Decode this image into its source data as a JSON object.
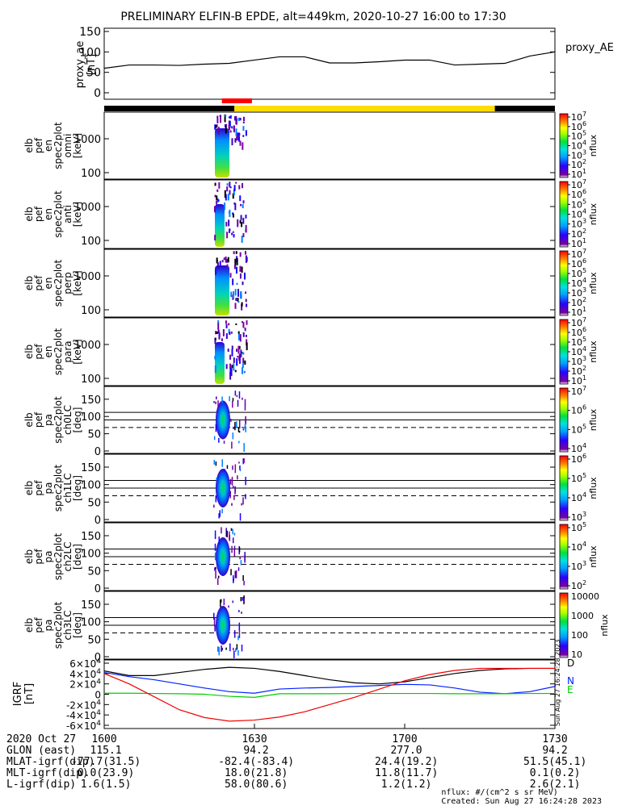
{
  "title": "PRELIMINARY ELFIN-B EPDE, alt=449km, 2020-10-27 16:00 to 17:30",
  "x_ticks": [
    "1600",
    "1630",
    "1700",
    "1730"
  ],
  "chart_data": [
    {
      "type": "line",
      "name": "proxy_ae",
      "ylabel": [
        "proxy_ae",
        "[nT]"
      ],
      "yticks": [
        "150",
        "100",
        "50",
        "0"
      ],
      "ylim": [
        0,
        150
      ],
      "x_minutes": [
        0,
        5,
        10,
        15,
        20,
        25,
        30,
        35,
        40,
        45,
        50,
        55,
        60,
        65,
        70,
        75,
        80,
        85,
        90
      ],
      "values": [
        60,
        68,
        68,
        67,
        70,
        72,
        80,
        88,
        88,
        73,
        73,
        76,
        80,
        80,
        68,
        70,
        72,
        90,
        100
      ],
      "legend": "proxy_AE"
    },
    {
      "type": "bar",
      "name": "orbit-indicator",
      "segments": [
        {
          "start_min": 0,
          "end_min": 26,
          "color": "#000000"
        },
        {
          "start_min": 26,
          "end_min": 78,
          "color": "#ffdd00"
        },
        {
          "start_min": 78,
          "end_min": 90,
          "color": "#000000"
        }
      ],
      "science_zone": {
        "start_min": 23.5,
        "end_min": 29.5,
        "color": "#ff0000"
      }
    },
    {
      "type": "heatmap",
      "name": "spectrogram-energy-omni",
      "ylabel": [
        "elb",
        "pef",
        "en",
        "spec2plot",
        "omni",
        "[keV]"
      ],
      "yticks": [
        "1000",
        "100"
      ],
      "colorbar_ticks": [
        "10^7",
        "10^6",
        "10^5",
        "10^4",
        "10^3",
        "10^2",
        "10^1"
      ],
      "colorbar_label": "nflux"
    },
    {
      "type": "heatmap",
      "name": "spectrogram-energy-anti",
      "ylabel": [
        "elb",
        "pef",
        "en",
        "spec2plot",
        "anti",
        "[keV]"
      ],
      "yticks": [
        "1000",
        "100"
      ],
      "colorbar_ticks": [
        "10^7",
        "10^6",
        "10^5",
        "10^4",
        "10^3",
        "10^2",
        "10^1"
      ],
      "colorbar_label": "nflux"
    },
    {
      "type": "heatmap",
      "name": "spectrogram-energy-perp",
      "ylabel": [
        "elb",
        "pef",
        "en",
        "spec2plot",
        "perp",
        "[keV]"
      ],
      "yticks": [
        "1000",
        "100"
      ],
      "colorbar_ticks": [
        "10^7",
        "10^6",
        "10^5",
        "10^4",
        "10^3",
        "10^2",
        "10^1"
      ],
      "colorbar_label": "nflux"
    },
    {
      "type": "heatmap",
      "name": "spectrogram-energy-para",
      "ylabel": [
        "elb",
        "pef",
        "en",
        "spec2plot",
        "para",
        "[keV]"
      ],
      "yticks": [
        "1000",
        "100"
      ],
      "colorbar_ticks": [
        "10^7",
        "10^6",
        "10^5",
        "10^4",
        "10^3",
        "10^2",
        "10^1"
      ],
      "colorbar_label": "nflux"
    },
    {
      "type": "heatmap",
      "name": "spectrogram-pitch-ch0",
      "ylabel": [
        "elb",
        "pef",
        "pa",
        "spec2plot",
        "ch0LC",
        "[deg]"
      ],
      "yticks": [
        "150",
        "100",
        "50",
        "0"
      ],
      "colorbar_ticks": [
        "10^7",
        "10^6",
        "10^5",
        "10^4"
      ],
      "colorbar_label": "nflux"
    },
    {
      "type": "heatmap",
      "name": "spectrogram-pitch-ch1",
      "ylabel": [
        "elb",
        "pef",
        "pa",
        "spec2plot",
        "ch1LC",
        "[deg]"
      ],
      "yticks": [
        "150",
        "100",
        "50",
        "0"
      ],
      "colorbar_ticks": [
        "10^6",
        "10^5",
        "10^4",
        "10^3"
      ],
      "colorbar_label": "nflux"
    },
    {
      "type": "heatmap",
      "name": "spectrogram-pitch-ch2",
      "ylabel": [
        "elb",
        "pef",
        "pa",
        "spec2plot",
        "ch2LC",
        "[deg]"
      ],
      "yticks": [
        "150",
        "100",
        "50",
        "0"
      ],
      "colorbar_ticks": [
        "10^5",
        "10^4",
        "10^3",
        "10^2"
      ],
      "colorbar_label": "nflux"
    },
    {
      "type": "heatmap",
      "name": "spectrogram-pitch-ch3",
      "ylabel": [
        "elb",
        "pef",
        "pa",
        "spec2plot",
        "ch3LC",
        "[deg]"
      ],
      "yticks": [
        "10000",
        "1000",
        "100",
        "10"
      ],
      "yticks_axis": [
        "150",
        "100",
        "50",
        "0"
      ],
      "colorbar_label": "nflux"
    },
    {
      "type": "line",
      "name": "igrf",
      "ylabel": [
        "IGRF",
        "[nT]"
      ],
      "yticks": [
        "6×10^4",
        "4×10^4",
        "2×10^4",
        "0",
        "-2×10^4",
        "-4×10^4",
        "-6×10^4"
      ],
      "ylim": [
        -60000,
        60000
      ],
      "x_minutes": [
        0,
        5,
        10,
        15,
        20,
        25,
        30,
        35,
        40,
        45,
        50,
        55,
        60,
        65,
        70,
        75,
        80,
        85,
        90
      ],
      "series": [
        {
          "name": "D",
          "color": "#000000",
          "values": [
            45000,
            36000,
            36000,
            42000,
            48000,
            52000,
            50000,
            44000,
            36000,
            28000,
            22000,
            20000,
            24000,
            32000,
            40000,
            46000,
            49000,
            50000,
            50000
          ]
        },
        {
          "name": "N",
          "color": "#0022ff",
          "values": [
            42000,
            34000,
            28000,
            20000,
            12000,
            5000,
            2000,
            10000,
            12000,
            13000,
            15000,
            17000,
            19000,
            18000,
            12000,
            4000,
            1000,
            5000,
            15000
          ]
        },
        {
          "name": "E",
          "color": "#00cc00",
          "values": [
            2000,
            2000,
            1500,
            1000,
            0,
            -4000,
            -6000,
            1000,
            1000,
            1000,
            1500,
            1500,
            1500,
            1500,
            1000,
            1000,
            1000,
            1500,
            1500
          ]
        },
        {
          "name": "",
          "color": "#ee0000",
          "values": [
            40000,
            20000,
            -5000,
            -30000,
            -45000,
            -52000,
            -50000,
            -44000,
            -34000,
            -20000,
            -6000,
            10000,
            26000,
            38000,
            46000,
            50000,
            50000,
            50000,
            50000
          ]
        }
      ]
    }
  ],
  "footer": {
    "labels": [
      "2020 Oct 27",
      "GLON (east)",
      "MLAT-igrf(dip)",
      "MLT-igrf(dip)",
      "L-igrf(dip)"
    ],
    "columns": [
      [
        "1600",
        "115.1",
        "-77.7(31.5)",
        "0.0(23.9)",
        "1.6(1.5)"
      ],
      [
        "1630",
        "94.2",
        "-82.4(-83.4)",
        "18.0(21.8)",
        "58.0(80.6)"
      ],
      [
        "1700",
        "277.0",
        "24.4(19.2)",
        "11.8(11.7)",
        "1.2(1.2)"
      ],
      [
        "1730",
        "94.2",
        "51.5(45.1)",
        "0.1(0.2)",
        "2.6(2.1)"
      ]
    ],
    "units_note": "nflux: #/(cm^2 s sr MeV)",
    "created": "Created: Sun Aug 27 16:24:28 2023",
    "side_stamp": "Sun Aug 27 16:24:28 2023"
  }
}
